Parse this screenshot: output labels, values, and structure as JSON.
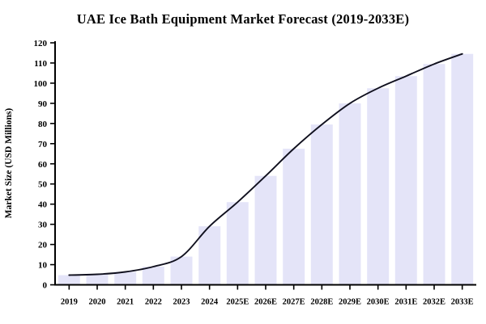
{
  "title": "UAE Ice Bath Equipment Market Forecast (2019-2033E)",
  "chart_data": {
    "type": "bar",
    "title": "UAE Ice Bath Equipment Market Forecast (2019-2033E)",
    "xlabel": "",
    "ylabel": "Market Size (USD Millions)",
    "ylim": [
      0,
      120
    ],
    "ytick_step": 10,
    "grid": false,
    "legend": "none",
    "categories": [
      "2019",
      "2020",
      "2021",
      "2022",
      "2023",
      "2024",
      "2025E",
      "2026E",
      "2027E",
      "2028E",
      "2029E",
      "2030E",
      "2031E",
      "2032E",
      "2033E"
    ],
    "series": [
      {
        "name": "Market Size (USD Millions)",
        "type": "bar",
        "values": [
          4.8,
          5.2,
          6.4,
          9,
          14,
          29,
          41,
          54,
          67.5,
          79.5,
          90,
          97.5,
          103.5,
          109.5,
          114.5
        ]
      },
      {
        "name": "Smooth trend line",
        "type": "line",
        "values": [
          4.8,
          5.2,
          6.4,
          9,
          14,
          29,
          41,
          54,
          67.5,
          79.5,
          90,
          97.5,
          103.5,
          109.5,
          114.5
        ]
      }
    ]
  },
  "colors": {
    "background": "#ffffff",
    "bar_fill": "#e4e4f8",
    "trend_line": "#10101e",
    "axis": "#000000",
    "text": "#000000"
  }
}
